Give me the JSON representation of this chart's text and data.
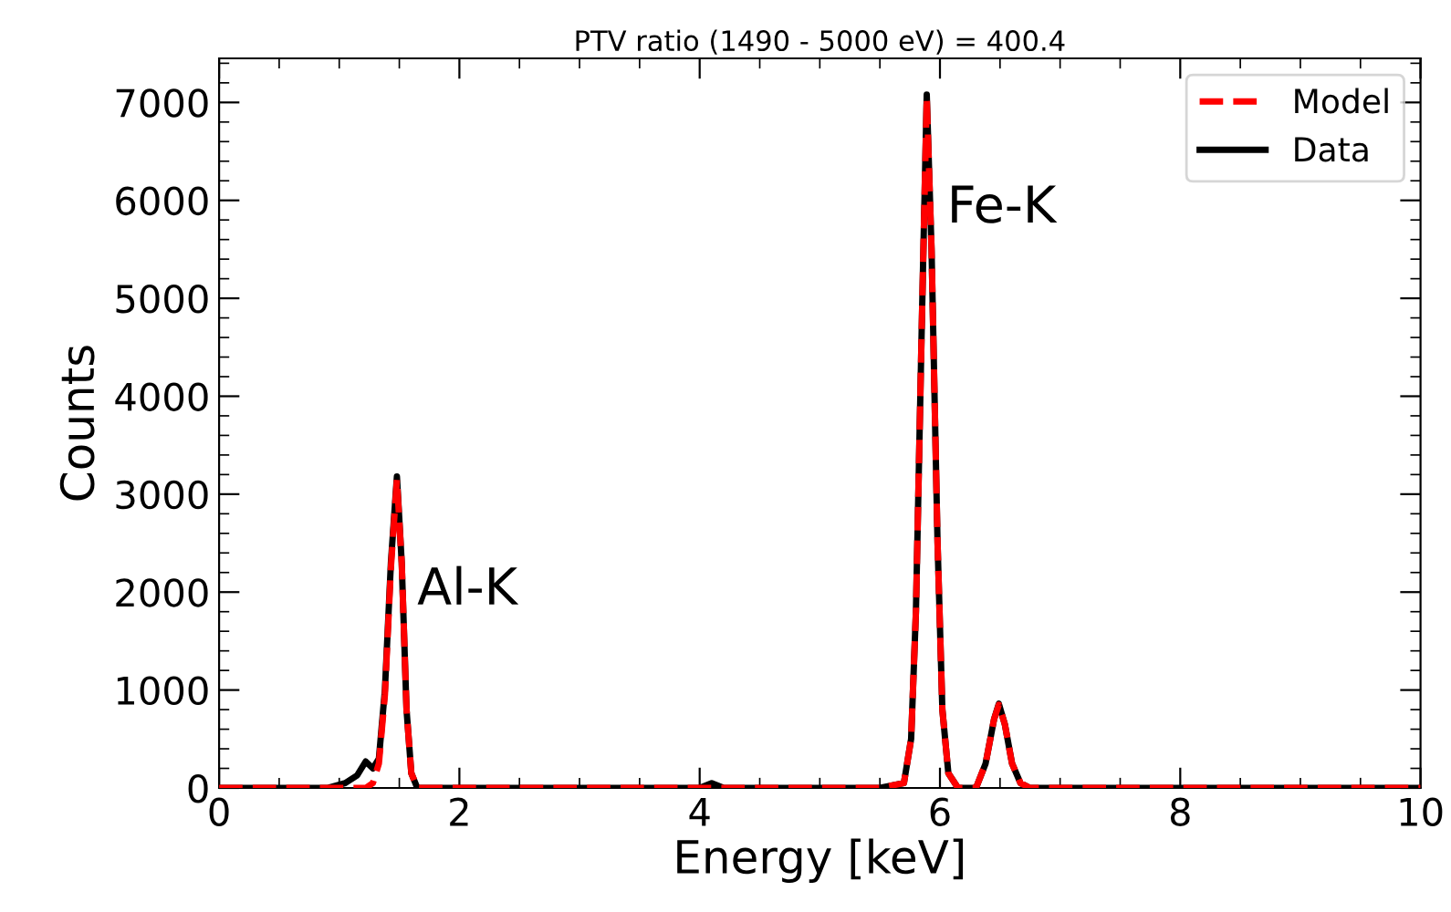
{
  "chart_data": {
    "type": "line",
    "title": "PTV ratio (1490 - 5000 eV) = 400.4",
    "xlabel": "Energy [keV]",
    "ylabel": "Counts",
    "xlim": [
      0,
      10
    ],
    "xticks": [
      0,
      2,
      4,
      6,
      8,
      10
    ],
    "ylim": [
      0,
      7450
    ],
    "yticks": [
      0,
      1000,
      2000,
      3000,
      4000,
      5000,
      6000,
      7000
    ],
    "grid": false,
    "legend": "top right",
    "marker": "none",
    "series": [
      {
        "name": "Model",
        "color": "#ff0000",
        "line_style": "dashed",
        "x": [
          0,
          0.5,
          0.9,
          1.05,
          1.15,
          1.22,
          1.28,
          1.33,
          1.38,
          1.43,
          1.48,
          1.52,
          1.56,
          1.6,
          1.65,
          1.8,
          3.0,
          4.0,
          5.5,
          5.7,
          5.76,
          5.8,
          5.85,
          5.89,
          5.93,
          5.98,
          6.02,
          6.07,
          6.15,
          6.3,
          6.38,
          6.45,
          6.49,
          6.54,
          6.6,
          6.67,
          6.75,
          8,
          10
        ],
        "values": [
          0,
          0,
          0,
          0,
          0,
          0,
          50,
          250,
          950,
          2250,
          3150,
          2300,
          800,
          150,
          0,
          0,
          0,
          0,
          0,
          50,
          500,
          1800,
          4800,
          7050,
          5500,
          2500,
          800,
          150,
          0,
          0,
          250,
          700,
          850,
          650,
          250,
          50,
          0,
          0,
          0
        ]
      },
      {
        "name": "Data",
        "color": "#000000",
        "line_style": "solid",
        "x": [
          0,
          0.5,
          0.9,
          1.05,
          1.15,
          1.22,
          1.28,
          1.33,
          1.38,
          1.43,
          1.48,
          1.52,
          1.56,
          1.6,
          1.65,
          1.8,
          3.0,
          4.0,
          4.1,
          4.2,
          5.5,
          5.7,
          5.76,
          5.8,
          5.85,
          5.89,
          5.93,
          5.98,
          6.02,
          6.07,
          6.15,
          6.3,
          6.38,
          6.45,
          6.49,
          6.54,
          6.6,
          6.67,
          6.75,
          8,
          10
        ],
        "values": [
          0,
          0,
          0,
          50,
          130,
          270,
          200,
          300,
          1000,
          2300,
          3180,
          2300,
          800,
          150,
          0,
          0,
          0,
          0,
          50,
          0,
          0,
          50,
          500,
          1800,
          4800,
          7080,
          5500,
          2500,
          800,
          150,
          0,
          0,
          250,
          700,
          860,
          650,
          250,
          50,
          0,
          0,
          0
        ]
      }
    ],
    "annotations": [
      {
        "text": "Al-K",
        "x": 1.48,
        "y": 3180
      },
      {
        "text": "Fe-K",
        "x": 5.89,
        "y": 7080
      }
    ]
  }
}
